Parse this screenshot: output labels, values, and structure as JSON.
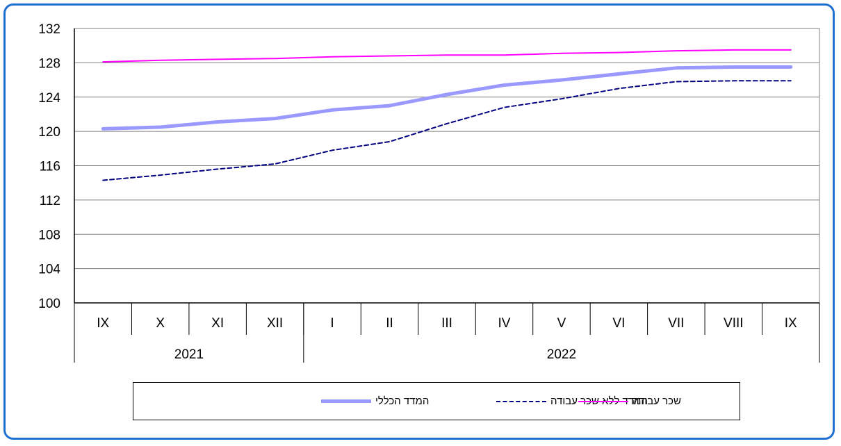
{
  "chart_data": {
    "type": "line",
    "categories": [
      "IX",
      "X",
      "XI",
      "XII",
      "I",
      "II",
      "III",
      "IV",
      "V",
      "VI",
      "VII",
      "VIII",
      "IX"
    ],
    "year_groups": [
      {
        "label": "2021",
        "count": 4
      },
      {
        "label": "2022",
        "count": 9
      }
    ],
    "ylim": [
      100,
      132
    ],
    "yticks": [
      100,
      104,
      108,
      112,
      116,
      120,
      124,
      128,
      132
    ],
    "grid": true,
    "series": [
      {
        "name": "המדד הכללי",
        "color": "#9999ff",
        "style": "solid-thick",
        "values": [
          120.3,
          120.5,
          121.1,
          121.5,
          122.5,
          123.0,
          124.3,
          125.4,
          126.0,
          126.7,
          127.4,
          127.5,
          127.5
        ]
      },
      {
        "name": "המדד ללא שכר עבודה",
        "color": "#000080",
        "style": "dashed",
        "values": [
          114.3,
          114.9,
          115.6,
          116.2,
          117.8,
          118.8,
          120.9,
          122.8,
          123.8,
          125.0,
          125.8,
          125.9,
          125.9
        ]
      },
      {
        "name": "שכר עבודה",
        "color": "#ff00ff",
        "style": "solid",
        "values": [
          128.1,
          128.3,
          128.4,
          128.5,
          128.7,
          128.8,
          128.9,
          128.9,
          129.1,
          129.2,
          129.4,
          129.5,
          129.5
        ]
      }
    ]
  }
}
